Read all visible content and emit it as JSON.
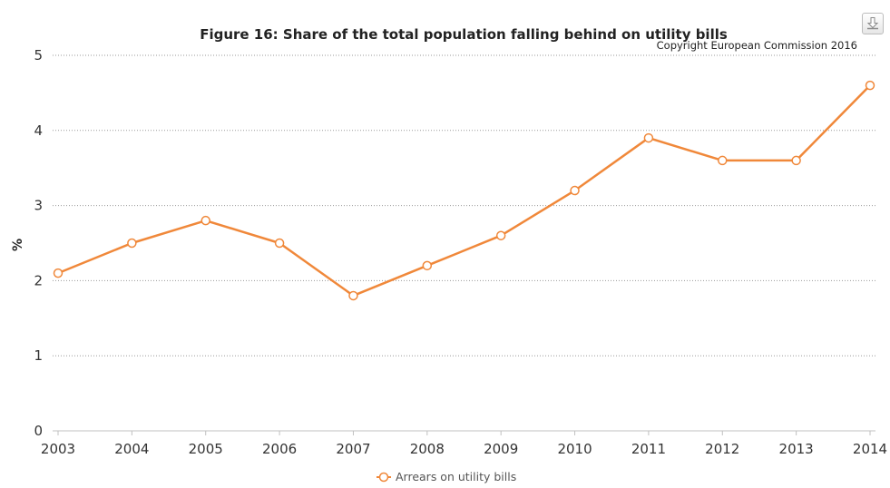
{
  "chart_data": {
    "type": "line",
    "title": "Figure 16: Share of the total population falling behind on utility bills",
    "credit": "Copyright European Commission 2016",
    "xlabel": "",
    "ylabel": "%",
    "categories": [
      "2003",
      "2004",
      "2005",
      "2006",
      "2007",
      "2008",
      "2009",
      "2010",
      "2011",
      "2012",
      "2013",
      "2014"
    ],
    "yticks": [
      "0",
      "1",
      "2",
      "3",
      "4",
      "5"
    ],
    "ylim": [
      0,
      5
    ],
    "grid": true,
    "legend_position": "bottom-center",
    "series": [
      {
        "name": "Arrears on utility bills",
        "color": "#f0883a",
        "values": [
          2.1,
          2.5,
          2.8,
          2.5,
          1.8,
          2.2,
          2.6,
          3.2,
          3.9,
          3.6,
          3.6,
          4.6
        ]
      }
    ]
  },
  "toolbar": {
    "export_icon": "download-icon"
  }
}
